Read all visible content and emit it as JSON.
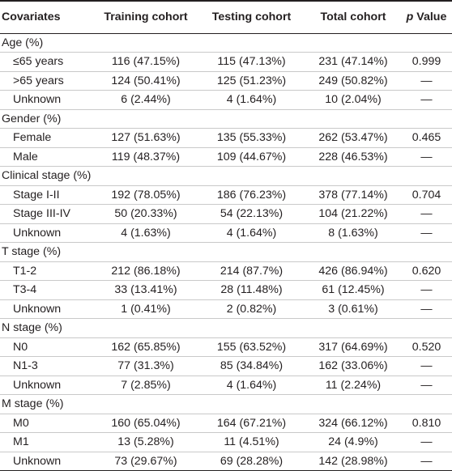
{
  "header": {
    "covariates": "Covariates",
    "training": "Training cohort",
    "testing": "Testing cohort",
    "total": "Total cohort",
    "p_italic": "p",
    "p_rest": " Value"
  },
  "rows": [
    {
      "label": "Age (%)"
    },
    {
      "label": "≤65 years",
      "training": "116 (47.15%)",
      "testing": "115 (47.13%)",
      "total": "231 (47.14%)",
      "p": "0.999"
    },
    {
      "label": ">65 years",
      "training": "124 (50.41%)",
      "testing": "125 (51.23%)",
      "total": "249 (50.82%)",
      "p": "—"
    },
    {
      "label": "Unknown",
      "training": "6 (2.44%)",
      "testing": "4 (1.64%)",
      "total": "10 (2.04%)",
      "p": "—"
    },
    {
      "label": "Gender (%)"
    },
    {
      "label": "Female",
      "training": "127 (51.63%)",
      "testing": "135 (55.33%)",
      "total": "262 (53.47%)",
      "p": "0.465"
    },
    {
      "label": "Male",
      "training": "119 (48.37%)",
      "testing": "109 (44.67%)",
      "total": "228 (46.53%)",
      "p": "—"
    },
    {
      "label": "Clinical stage (%)"
    },
    {
      "label": "Stage I-II",
      "training": "192 (78.05%)",
      "testing": "186 (76.23%)",
      "total": "378 (77.14%)",
      "p": "0.704"
    },
    {
      "label": "Stage III-IV",
      "training": "50 (20.33%)",
      "testing": "54 (22.13%)",
      "total": "104 (21.22%)",
      "p": "—"
    },
    {
      "label": "Unknown",
      "training": "4 (1.63%)",
      "testing": "4 (1.64%)",
      "total": "8 (1.63%)",
      "p": "—"
    },
    {
      "label": "T stage (%)"
    },
    {
      "label": "T1-2",
      "training": "212 (86.18%)",
      "testing": "214 (87.7%)",
      "total": "426 (86.94%)",
      "p": "0.620"
    },
    {
      "label": "T3-4",
      "training": "33 (13.41%)",
      "testing": "28 (11.48%)",
      "total": "61 (12.45%)",
      "p": "—"
    },
    {
      "label": "Unknown",
      "training": "1 (0.41%)",
      "testing": "2 (0.82%)",
      "total": "3 (0.61%)",
      "p": "—"
    },
    {
      "label": "N stage (%)"
    },
    {
      "label": "N0",
      "training": "162 (65.85%)",
      "testing": "155 (63.52%)",
      "total": "317 (64.69%)",
      "p": "0.520"
    },
    {
      "label": "N1-3",
      "training": "77 (31.3%)",
      "testing": "85 (34.84%)",
      "total": "162 (33.06%)",
      "p": "—"
    },
    {
      "label": "Unknown",
      "training": "7 (2.85%)",
      "testing": "4 (1.64%)",
      "total": "11 (2.24%)",
      "p": "—"
    },
    {
      "label": "M stage (%)"
    },
    {
      "label": "M0",
      "training": "160 (65.04%)",
      "testing": "164 (67.21%)",
      "total": "324 (66.12%)",
      "p": "0.810"
    },
    {
      "label": "M1",
      "training": "13 (5.28%)",
      "testing": "11 (4.51%)",
      "total": "24 (4.9%)",
      "p": "—"
    },
    {
      "label": "Unknown",
      "training": "73 (29.67%)",
      "testing": "69 (28.28%)",
      "total": "142 (28.98%)",
      "p": "—"
    }
  ]
}
